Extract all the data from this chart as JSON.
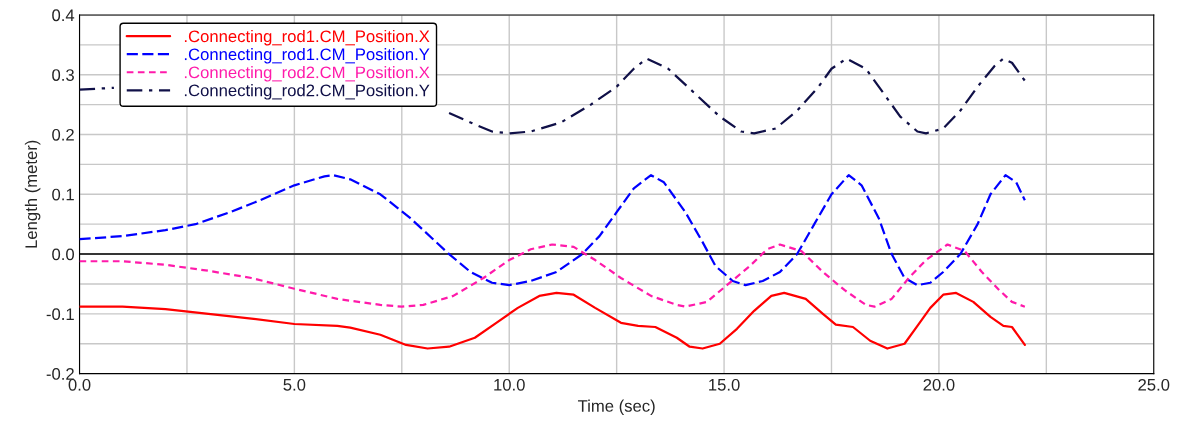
{
  "chart_data": {
    "type": "line",
    "xlabel": "Time (sec)",
    "ylabel": "Length (meter)",
    "xlim": [
      0,
      25
    ],
    "ylim": [
      -0.2,
      0.4
    ],
    "xticks": [
      {
        "value": 0,
        "label": "0.0"
      },
      {
        "value": 2.5,
        "label": null
      },
      {
        "value": 5,
        "label": "5.0"
      },
      {
        "value": 7.5,
        "label": null
      },
      {
        "value": 10,
        "label": "10.0"
      },
      {
        "value": 12.5,
        "label": null
      },
      {
        "value": 15,
        "label": "15.0"
      },
      {
        "value": 17.5,
        "label": null
      },
      {
        "value": 20,
        "label": "20.0"
      },
      {
        "value": 22.5,
        "label": null
      },
      {
        "value": 25,
        "label": "25.0"
      }
    ],
    "yticks": [
      {
        "value": -0.2,
        "label": "-0.2"
      },
      {
        "value": -0.15,
        "label": null
      },
      {
        "value": -0.1,
        "label": "-0.1"
      },
      {
        "value": -0.05,
        "label": null
      },
      {
        "value": 0,
        "label": "0.0"
      },
      {
        "value": 0.05,
        "label": null
      },
      {
        "value": 0.1,
        "label": "0.1"
      },
      {
        "value": 0.15,
        "label": null
      },
      {
        "value": 0.2,
        "label": "0.2"
      },
      {
        "value": 0.25,
        "label": null
      },
      {
        "value": 0.3,
        "label": "0.3"
      },
      {
        "value": 0.35,
        "label": null
      },
      {
        "value": 0.4,
        "label": "0.4"
      }
    ],
    "grid": true,
    "legend": "top left",
    "ref_lines": [
      {
        "axis": "y",
        "value": 0,
        "color": "#000000"
      }
    ],
    "series": [
      {
        "name": ".Connecting_rod1.CM_Position.X",
        "color": "#ff0000",
        "line_style": "solid",
        "x": [
          0,
          1,
          2,
          3,
          4,
          5,
          6,
          6.3,
          7,
          7.6,
          8.1,
          8.6,
          9.2,
          9.7,
          10.2,
          10.7,
          11.1,
          11.5,
          12.0,
          12.6,
          13.0,
          13.4,
          13.9,
          14.2,
          14.5,
          14.9,
          15.3,
          15.7,
          16.1,
          16.4,
          16.9,
          17.3,
          17.6,
          18.0,
          18.4,
          18.8,
          19.2,
          19.5,
          19.8,
          20.1,
          20.4,
          20.8,
          21.2,
          21.5,
          21.7,
          22.0
        ],
        "values": [
          -0.088,
          -0.088,
          -0.092,
          -0.1,
          -0.108,
          -0.117,
          -0.12,
          -0.123,
          -0.135,
          -0.152,
          -0.158,
          -0.155,
          -0.14,
          -0.115,
          -0.09,
          -0.07,
          -0.065,
          -0.068,
          -0.09,
          -0.115,
          -0.12,
          -0.122,
          -0.14,
          -0.155,
          -0.158,
          -0.15,
          -0.125,
          -0.095,
          -0.07,
          -0.065,
          -0.075,
          -0.1,
          -0.118,
          -0.122,
          -0.145,
          -0.158,
          -0.15,
          -0.12,
          -0.09,
          -0.068,
          -0.065,
          -0.08,
          -0.105,
          -0.12,
          -0.122,
          -0.152
        ]
      },
      {
        "name": ".Connecting_rod1.CM_Position.Y",
        "color": "#0000ff",
        "line_style": "dashed",
        "x": [
          0,
          1,
          2,
          2.7,
          3.5,
          4.2,
          5,
          5.7,
          5.9,
          6.3,
          7,
          7.7,
          8.3,
          8.6,
          9.1,
          9.6,
          10.0,
          10.5,
          11.1,
          11.7,
          12.1,
          12.5,
          12.9,
          13.3,
          13.6,
          14.1,
          14.5,
          14.8,
          15.2,
          15.5,
          15.9,
          16.3,
          16.7,
          17.1,
          17.5,
          17.9,
          18.2,
          18.6,
          18.9,
          19.2,
          19.5,
          19.8,
          20.1,
          20.5,
          20.9,
          21.2,
          21.55,
          21.8,
          22.0
        ],
        "values": [
          0.025,
          0.03,
          0.04,
          0.05,
          0.07,
          0.09,
          0.115,
          0.13,
          0.132,
          0.125,
          0.1,
          0.06,
          0.02,
          0.0,
          -0.03,
          -0.048,
          -0.052,
          -0.045,
          -0.03,
          0.0,
          0.03,
          0.07,
          0.11,
          0.132,
          0.12,
          0.07,
          0.02,
          -0.02,
          -0.045,
          -0.052,
          -0.045,
          -0.03,
          0.0,
          0.05,
          0.1,
          0.132,
          0.115,
          0.06,
          0.0,
          -0.04,
          -0.052,
          -0.048,
          -0.03,
          0.0,
          0.05,
          0.1,
          0.132,
          0.12,
          0.09
        ]
      },
      {
        "name": ".Connecting_rod2.CM_Position.X",
        "color": "#ff1aaa",
        "line_style": "dotted",
        "x": [
          0,
          1,
          2,
          3,
          4,
          5,
          6,
          7,
          7.5,
          8,
          8.7,
          9.4,
          10,
          10.5,
          11,
          11.5,
          12,
          12.6,
          13.3,
          13.9,
          14.1,
          14.6,
          15.1,
          15.6,
          16.0,
          16.3,
          16.8,
          17.3,
          17.8,
          18.3,
          18.5,
          18.9,
          19.3,
          19.7,
          20.2,
          20.6,
          21.0,
          21.4,
          21.7,
          22.0
        ],
        "values": [
          -0.012,
          -0.012,
          -0.018,
          -0.028,
          -0.04,
          -0.058,
          -0.075,
          -0.085,
          -0.088,
          -0.085,
          -0.07,
          -0.04,
          -0.01,
          0.008,
          0.016,
          0.012,
          -0.01,
          -0.04,
          -0.07,
          -0.085,
          -0.088,
          -0.08,
          -0.05,
          -0.02,
          0.008,
          0.016,
          0.005,
          -0.03,
          -0.06,
          -0.085,
          -0.088,
          -0.075,
          -0.04,
          -0.01,
          0.016,
          0.005,
          -0.03,
          -0.06,
          -0.08,
          -0.088
        ]
      },
      {
        "name": ".Connecting_rod2.CM_Position.Y",
        "color": "#101048",
        "line_style": "dashdot",
        "x": [
          0,
          0.5,
          0.8,
          4,
          8.6,
          9.1,
          9.6,
          10.0,
          10.5,
          11.2,
          11.9,
          12.5,
          12.9,
          13.2,
          13.7,
          14.3,
          14.9,
          15.4,
          15.7,
          16.2,
          16.7,
          17.2,
          17.5,
          17.85,
          18.3,
          18.7,
          19.1,
          19.5,
          19.7,
          20.1,
          20.5,
          20.9,
          21.3,
          21.5,
          21.7,
          22.0
        ],
        "values": [
          0.275,
          0.277,
          0.278,
          null,
          0.236,
          0.22,
          0.205,
          0.202,
          0.205,
          0.22,
          0.25,
          0.28,
          0.31,
          0.327,
          0.31,
          0.27,
          0.23,
          0.205,
          0.202,
          0.21,
          0.24,
          0.28,
          0.31,
          0.327,
          0.31,
          0.27,
          0.23,
          0.205,
          0.202,
          0.21,
          0.24,
          0.28,
          0.315,
          0.327,
          0.32,
          0.29
        ]
      }
    ]
  }
}
